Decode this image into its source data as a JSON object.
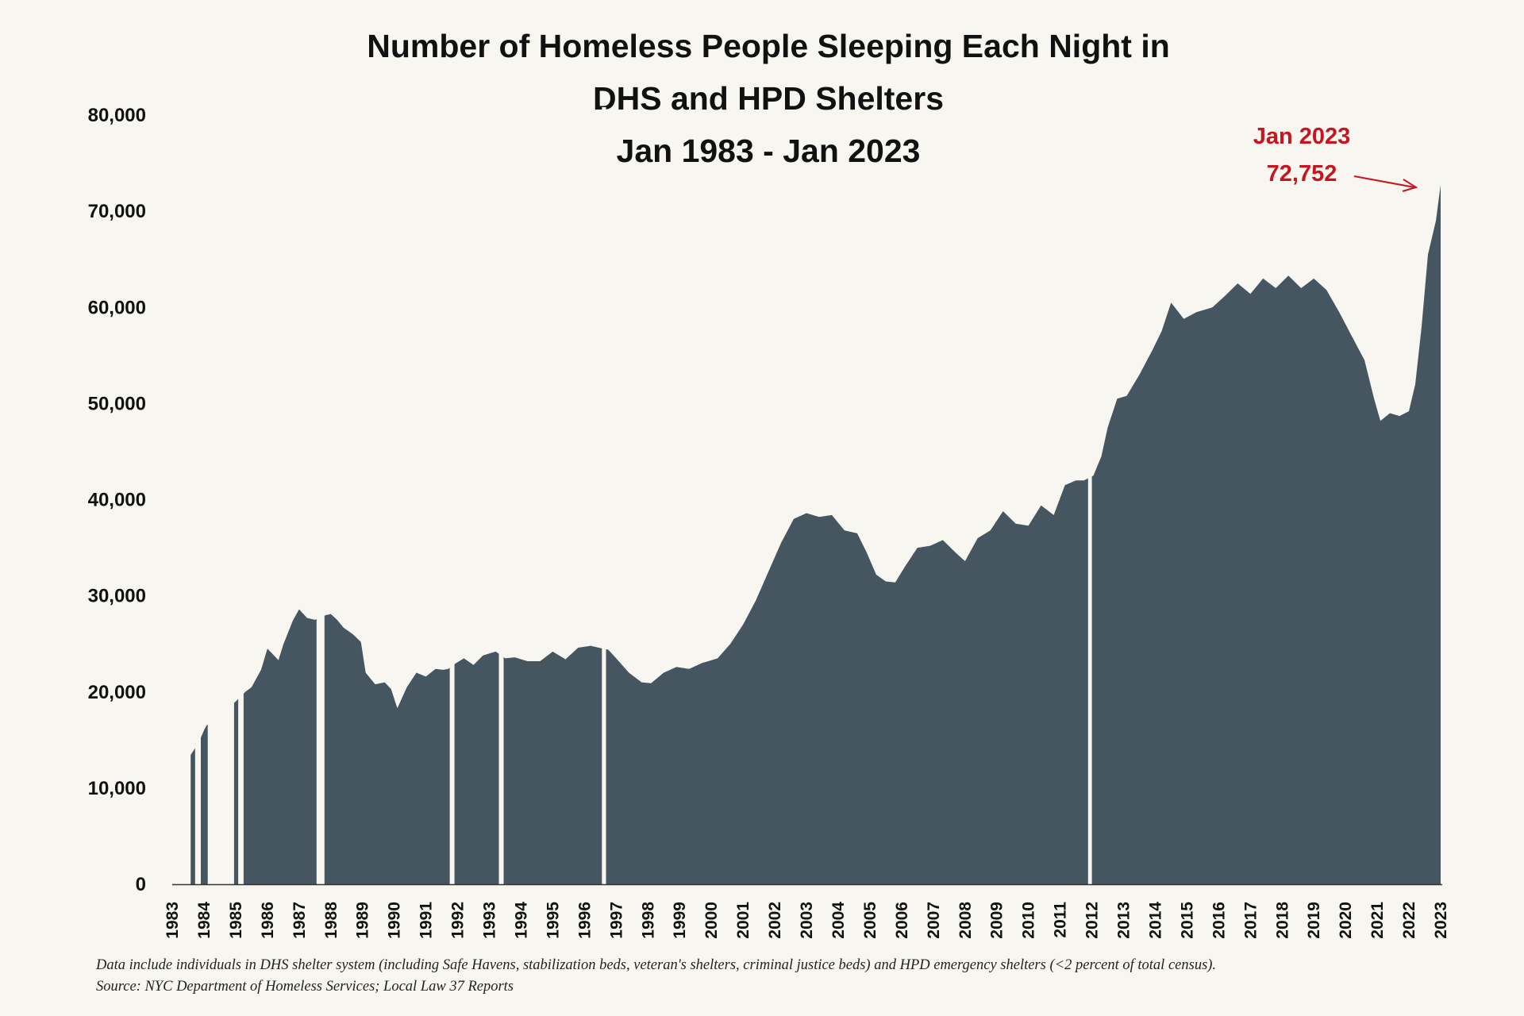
{
  "chart_data": {
    "type": "area",
    "title": [
      "Number of Homeless People Sleeping Each Night in",
      "DHS and HPD Shelters",
      "Jan 1983 - Jan 2023"
    ],
    "xlabel": "",
    "ylabel": "",
    "ylim": [
      0,
      80000
    ],
    "y_ticks": [
      "0",
      "10,000",
      "20,000",
      "30,000",
      "40,000",
      "50,000",
      "60,000",
      "70,000",
      "80,000"
    ],
    "x_ticks": [
      "1983",
      "1984",
      "1985",
      "1986",
      "1987",
      "1988",
      "1989",
      "1990",
      "1991",
      "1992",
      "1993",
      "1994",
      "1995",
      "1996",
      "1997",
      "1998",
      "1999",
      "2000",
      "2001",
      "2002",
      "2003",
      "2004",
      "2005",
      "2006",
      "2007",
      "2008",
      "2009",
      "2010",
      "2011",
      "2012",
      "2013",
      "2014",
      "2015",
      "2016",
      "2017",
      "2018",
      "2019",
      "2020",
      "2021",
      "2022",
      "2023"
    ],
    "xlim": [
      1983,
      2023
    ],
    "fill_color": "#455661",
    "annotation_color": "#c8141e",
    "annotation": {
      "line1": "Jan 2023",
      "line2": "72,752",
      "x": 2023.0,
      "y": 72752
    },
    "grid": false,
    "gaps": [
      [
        1983.25,
        1983.58
      ],
      [
        1983.72,
        1983.9
      ],
      [
        1984.12,
        1984.95
      ],
      [
        1985.08,
        1985.25
      ],
      [
        1987.55,
        1987.8
      ],
      [
        1991.75,
        1991.9
      ],
      [
        1993.3,
        1993.45
      ],
      [
        1996.55,
        1996.68
      ],
      [
        2011.88,
        2012.0
      ]
    ],
    "series": [
      {
        "name": "Homeless people in DHS and HPD shelters",
        "points": [
          [
            1983.45,
            12800
          ],
          [
            1983.83,
            14700
          ],
          [
            1984.0,
            16000
          ],
          [
            1984.08,
            16500
          ],
          [
            1985.0,
            19000
          ],
          [
            1985.3,
            20000
          ],
          [
            1985.5,
            20500
          ],
          [
            1985.8,
            22300
          ],
          [
            1986.0,
            24500
          ],
          [
            1986.15,
            24000
          ],
          [
            1986.35,
            23300
          ],
          [
            1986.5,
            24900
          ],
          [
            1986.8,
            27400
          ],
          [
            1987.0,
            28600
          ],
          [
            1987.25,
            27700
          ],
          [
            1987.5,
            27500
          ],
          [
            1987.85,
            28000
          ],
          [
            1988.0,
            28100
          ],
          [
            1988.2,
            27500
          ],
          [
            1988.4,
            26700
          ],
          [
            1988.7,
            26000
          ],
          [
            1988.95,
            25200
          ],
          [
            1989.1,
            22000
          ],
          [
            1989.4,
            20800
          ],
          [
            1989.7,
            21000
          ],
          [
            1989.9,
            20300
          ],
          [
            1990.1,
            18300
          ],
          [
            1990.4,
            20500
          ],
          [
            1990.7,
            22000
          ],
          [
            1991.0,
            21600
          ],
          [
            1991.3,
            22400
          ],
          [
            1991.55,
            22300
          ],
          [
            1991.7,
            22400
          ],
          [
            1991.95,
            23000
          ],
          [
            1992.2,
            23500
          ],
          [
            1992.5,
            22800
          ],
          [
            1992.8,
            23800
          ],
          [
            1993.2,
            24200
          ],
          [
            1993.5,
            23500
          ],
          [
            1993.8,
            23600
          ],
          [
            1994.2,
            23200
          ],
          [
            1994.6,
            23200
          ],
          [
            1995.0,
            24200
          ],
          [
            1995.4,
            23400
          ],
          [
            1995.8,
            24600
          ],
          [
            1996.2,
            24800
          ],
          [
            1996.45,
            24600
          ],
          [
            1996.75,
            24400
          ],
          [
            1997.0,
            23500
          ],
          [
            1997.4,
            22000
          ],
          [
            1997.8,
            21000
          ],
          [
            1998.1,
            20900
          ],
          [
            1998.5,
            22000
          ],
          [
            1998.9,
            22600
          ],
          [
            1999.3,
            22400
          ],
          [
            1999.7,
            23000
          ],
          [
            2000.2,
            23500
          ],
          [
            2000.6,
            25000
          ],
          [
            2001.0,
            27000
          ],
          [
            2001.4,
            29500
          ],
          [
            2001.8,
            32500
          ],
          [
            2002.2,
            35500
          ],
          [
            2002.6,
            38000
          ],
          [
            2003.0,
            38600
          ],
          [
            2003.4,
            38200
          ],
          [
            2003.8,
            38400
          ],
          [
            2004.2,
            36800
          ],
          [
            2004.6,
            36500
          ],
          [
            2004.9,
            34500
          ],
          [
            2005.2,
            32200
          ],
          [
            2005.5,
            31500
          ],
          [
            2005.8,
            31400
          ],
          [
            2006.1,
            33000
          ],
          [
            2006.5,
            35000
          ],
          [
            2006.9,
            35200
          ],
          [
            2007.3,
            35800
          ],
          [
            2007.7,
            34500
          ],
          [
            2008.0,
            33600
          ],
          [
            2008.4,
            36000
          ],
          [
            2008.8,
            36800
          ],
          [
            2009.2,
            38800
          ],
          [
            2009.6,
            37500
          ],
          [
            2010.0,
            37300
          ],
          [
            2010.4,
            39400
          ],
          [
            2010.8,
            38400
          ],
          [
            2011.15,
            41500
          ],
          [
            2011.5,
            42000
          ],
          [
            2011.75,
            42000
          ],
          [
            2012.05,
            42500
          ],
          [
            2012.3,
            44500
          ],
          [
            2012.5,
            47500
          ],
          [
            2012.8,
            50500
          ],
          [
            2013.1,
            50800
          ],
          [
            2013.5,
            53000
          ],
          [
            2013.9,
            55500
          ],
          [
            2014.2,
            57500
          ],
          [
            2014.5,
            60500
          ],
          [
            2014.9,
            58800
          ],
          [
            2015.3,
            59500
          ],
          [
            2015.8,
            60000
          ],
          [
            2016.2,
            61200
          ],
          [
            2016.6,
            62500
          ],
          [
            2017.0,
            61400
          ],
          [
            2017.4,
            63000
          ],
          [
            2017.8,
            62000
          ],
          [
            2018.2,
            63300
          ],
          [
            2018.6,
            62000
          ],
          [
            2019.0,
            63000
          ],
          [
            2019.4,
            61800
          ],
          [
            2019.8,
            59500
          ],
          [
            2020.2,
            57000
          ],
          [
            2020.6,
            54500
          ],
          [
            2020.9,
            50500
          ],
          [
            2021.1,
            48200
          ],
          [
            2021.4,
            49000
          ],
          [
            2021.7,
            48700
          ],
          [
            2022.0,
            49200
          ],
          [
            2022.2,
            52000
          ],
          [
            2022.4,
            58000
          ],
          [
            2022.6,
            65500
          ],
          [
            2022.85,
            69000
          ],
          [
            2023.0,
            72752
          ]
        ]
      }
    ]
  },
  "notes": {
    "line1": "Data include individuals in DHS shelter system (including Safe Havens, stabilization beds, veteran's shelters, criminal justice beds) and HPD emergency shelters (<2 percent of total census).",
    "line2": "Source:  NYC Department of Homeless Services; Local Law 37 Reports"
  }
}
